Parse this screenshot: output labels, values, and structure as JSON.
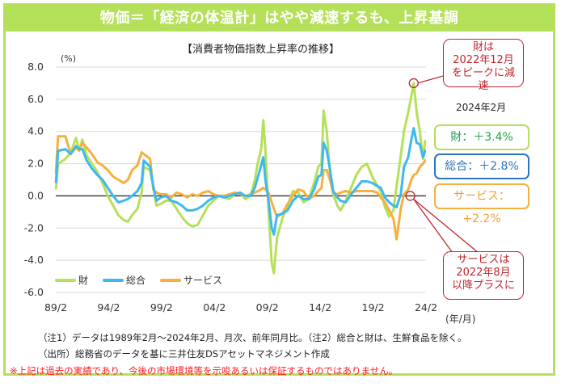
{
  "header": {
    "title": "物価＝「経済の体温計」はやや減速するも、上昇基調"
  },
  "chart_data": {
    "type": "line",
    "title": "【消費者物価指数上昇率の推移】",
    "ylabel": "(%)",
    "xlabel": "(年/月)",
    "ylim": [
      -6.0,
      8.0
    ],
    "yticks": [
      "8.0",
      "6.0",
      "4.0",
      "2.0",
      "0.0",
      "-2.0",
      "-4.0",
      "-6.0"
    ],
    "ytick_values": [
      8,
      6,
      4,
      2,
      0,
      -2,
      -4,
      -6
    ],
    "xlim": [
      1989.083,
      2024.083
    ],
    "xticks": [
      "89/2",
      "94/2",
      "99/2",
      "04/2",
      "09/2",
      "14/2",
      "19/2",
      "24/2"
    ],
    "xtick_values": [
      1989.083,
      1994.083,
      1999.083,
      2004.083,
      2009.083,
      2014.083,
      2019.083,
      2024.083
    ],
    "grid": true,
    "legend_position": "bottom-left",
    "series": [
      {
        "name": "財",
        "color": "#b5e05a",
        "x": [
          1989.1,
          1989.3,
          1990.0,
          1990.5,
          1991.0,
          1991.3,
          1991.6,
          1992.0,
          1992.5,
          1993.0,
          1993.5,
          1994.0,
          1994.5,
          1995.0,
          1995.5,
          1995.9,
          1996.3,
          1996.8,
          1997.2,
          1997.4,
          1998.0,
          1998.3,
          1998.6,
          1999.0,
          1999.5,
          2000.0,
          2000.5,
          2001.0,
          2001.5,
          2002.0,
          2002.5,
          2003.0,
          2003.5,
          2004.0,
          2004.5,
          2005.0,
          2005.5,
          2006.0,
          2006.5,
          2007.0,
          2007.5,
          2007.9,
          2008.2,
          2008.5,
          2008.7,
          2008.9,
          2009.2,
          2009.5,
          2009.7,
          2010.0,
          2010.5,
          2011.0,
          2011.5,
          2012.0,
          2012.5,
          2013.0,
          2013.5,
          2013.9,
          2014.2,
          2014.4,
          2014.7,
          2015.0,
          2015.3,
          2015.7,
          2016.0,
          2016.5,
          2017.0,
          2017.5,
          2018.0,
          2018.5,
          2019.0,
          2019.5,
          2019.8,
          2020.2,
          2020.6,
          2021.0,
          2021.3,
          2021.7,
          2022.0,
          2022.4,
          2022.7,
          2022.92,
          2023.2,
          2023.5,
          2023.8,
          2024.0,
          2024.083
        ],
        "values": [
          0.4,
          2.0,
          2.3,
          2.7,
          3.6,
          2.8,
          3.5,
          2.5,
          2.0,
          1.5,
          0.8,
          0.0,
          -0.6,
          -1.2,
          -1.5,
          -1.6,
          -1.2,
          -0.8,
          0.2,
          1.8,
          1.6,
          0.6,
          -0.6,
          -0.5,
          -0.3,
          -0.3,
          -0.8,
          -1.3,
          -1.7,
          -1.9,
          -1.8,
          -1.2,
          -0.6,
          -0.3,
          0.0,
          -0.1,
          -0.2,
          0.1,
          0.2,
          -0.2,
          0.0,
          1.0,
          2.1,
          2.9,
          4.7,
          2.9,
          -0.9,
          -4.2,
          -4.8,
          -2.6,
          -1.4,
          -0.6,
          0.3,
          0.2,
          -0.4,
          -0.2,
          0.8,
          1.8,
          2.0,
          5.3,
          4.0,
          1.5,
          0.1,
          -0.6,
          -0.9,
          -0.3,
          0.5,
          1.3,
          1.8,
          2.0,
          1.2,
          0.6,
          0.3,
          -0.7,
          -1.3,
          -0.9,
          0.6,
          2.5,
          4.0,
          5.2,
          6.2,
          7.0,
          5.2,
          4.0,
          2.3,
          3.4,
          3.4
        ]
      },
      {
        "name": "総合",
        "color": "#3db8f0",
        "x": [
          1989.1,
          1989.3,
          1990.0,
          1990.5,
          1991.0,
          1991.3,
          1991.6,
          1992.0,
          1992.5,
          1993.0,
          1993.5,
          1994.0,
          1994.5,
          1995.0,
          1995.5,
          1995.9,
          1996.3,
          1996.8,
          1997.2,
          1997.4,
          1998.0,
          1998.3,
          1998.6,
          1999.0,
          1999.5,
          2000.0,
          2000.5,
          2001.0,
          2001.5,
          2002.0,
          2002.5,
          2003.0,
          2003.5,
          2004.0,
          2004.5,
          2005.0,
          2005.5,
          2006.0,
          2006.5,
          2007.0,
          2007.5,
          2007.9,
          2008.2,
          2008.5,
          2008.7,
          2008.9,
          2009.2,
          2009.5,
          2009.7,
          2010.0,
          2010.5,
          2011.0,
          2011.5,
          2012.0,
          2012.5,
          2013.0,
          2013.5,
          2013.9,
          2014.2,
          2014.4,
          2014.7,
          2015.0,
          2015.3,
          2015.7,
          2016.0,
          2016.5,
          2017.0,
          2017.5,
          2018.0,
          2018.5,
          2019.0,
          2019.5,
          2019.8,
          2020.2,
          2020.6,
          2021.0,
          2021.3,
          2021.7,
          2022.0,
          2022.4,
          2022.7,
          2022.92,
          2023.2,
          2023.5,
          2023.8,
          2024.0,
          2024.083
        ],
        "values": [
          0.8,
          2.8,
          2.9,
          2.6,
          3.1,
          2.9,
          2.9,
          2.2,
          1.7,
          1.3,
          1.0,
          0.5,
          0.0,
          -0.4,
          -0.3,
          -0.2,
          0.0,
          0.3,
          0.8,
          2.2,
          1.8,
          0.6,
          -0.3,
          -0.1,
          0.0,
          -0.3,
          -0.4,
          -0.6,
          -0.9,
          -0.9,
          -0.8,
          -0.6,
          -0.3,
          -0.1,
          0.0,
          -0.1,
          0.0,
          0.1,
          0.2,
          0.0,
          0.0,
          0.5,
          1.2,
          1.9,
          2.4,
          1.0,
          -0.3,
          -2.0,
          -2.4,
          -1.2,
          -1.1,
          -0.9,
          -0.3,
          0.0,
          -0.2,
          -0.2,
          0.4,
          1.2,
          1.3,
          3.3,
          2.8,
          1.7,
          0.3,
          -0.1,
          -0.3,
          -0.4,
          0.1,
          0.5,
          0.9,
          0.9,
          0.8,
          0.6,
          0.5,
          -0.1,
          -0.4,
          -0.6,
          -0.7,
          0.1,
          1.8,
          2.4,
          3.5,
          4.2,
          3.3,
          3.2,
          2.4,
          2.8,
          2.8
        ]
      },
      {
        "name": "サービス",
        "color": "#f6b03d",
        "x": [
          1989.1,
          1989.3,
          1990.0,
          1990.5,
          1991.0,
          1991.3,
          1991.6,
          1992.0,
          1992.5,
          1993.0,
          1993.5,
          1994.0,
          1994.5,
          1995.0,
          1995.5,
          1995.9,
          1996.3,
          1996.8,
          1997.2,
          1997.4,
          1998.0,
          1998.3,
          1998.6,
          1999.0,
          1999.5,
          2000.0,
          2000.5,
          2001.0,
          2001.5,
          2002.0,
          2002.5,
          2003.0,
          2003.5,
          2004.0,
          2004.5,
          2005.0,
          2005.5,
          2006.0,
          2006.5,
          2007.0,
          2007.5,
          2007.9,
          2008.2,
          2008.5,
          2008.7,
          2008.9,
          2009.2,
          2009.5,
          2009.7,
          2010.0,
          2010.5,
          2011.0,
          2011.5,
          2012.0,
          2012.5,
          2013.0,
          2013.5,
          2013.9,
          2014.2,
          2014.4,
          2014.7,
          2015.0,
          2015.3,
          2015.7,
          2016.0,
          2016.5,
          2017.0,
          2017.5,
          2018.0,
          2018.5,
          2019.0,
          2019.5,
          2019.8,
          2020.2,
          2020.6,
          2021.0,
          2021.3,
          2021.7,
          2022.0,
          2022.4,
          2022.7,
          2022.92,
          2023.2,
          2023.5,
          2023.8,
          2024.0,
          2024.083
        ],
        "values": [
          1.4,
          3.7,
          3.7,
          2.6,
          3.0,
          2.8,
          3.3,
          3.0,
          2.6,
          2.1,
          1.9,
          1.6,
          1.2,
          1.0,
          0.8,
          1.0,
          1.6,
          1.9,
          2.7,
          2.6,
          2.3,
          0.4,
          0.2,
          0.1,
          0.1,
          -0.1,
          0.2,
          0.1,
          -0.1,
          0.1,
          0.0,
          0.2,
          0.3,
          0.1,
          0.0,
          0.0,
          0.1,
          0.2,
          0.1,
          0.0,
          0.1,
          0.2,
          0.3,
          0.4,
          0.5,
          0.4,
          0.2,
          -0.4,
          -0.8,
          -1.3,
          -1.1,
          -0.5,
          0.0,
          0.4,
          0.3,
          -0.2,
          0.0,
          0.3,
          0.5,
          1.6,
          1.6,
          1.0,
          0.2,
          0.1,
          0.2,
          0.3,
          0.2,
          0.3,
          0.3,
          0.3,
          0.3,
          0.2,
          -0.1,
          -0.4,
          -0.9,
          -1.4,
          -2.7,
          -0.8,
          0.1,
          0.4,
          1.0,
          1.3,
          1.4,
          1.8,
          2.0,
          2.2,
          2.2
        ]
      }
    ]
  },
  "annotations": {
    "goods_peak": {
      "line1": "財は",
      "line2": "2022年12月",
      "line3": "をピークに減速"
    },
    "service_plus": {
      "line1": "サービスは",
      "line2": "2022年8月",
      "line3": "以降プラスに"
    },
    "as_of": "2024年2月",
    "goods_value": "財：＋3.4%",
    "total_value": "総合：＋2.8%",
    "service_value": "サービス：+2.2%"
  },
  "legend": {
    "goods": "財",
    "total": "総合",
    "service": "サービス"
  },
  "notes": {
    "note1": "（注1）データは1989年2月～2024年2月、月次、前年同月比。（注2）総合と財は、生鮮食品を除く。",
    "note2": "（出所）総務省のデータを基に三井住友DSアセットマネジメント作成",
    "disclaimer": "※上記は過去の実績であり、今後の市場環境等を示唆あるいは保証するものではありません。"
  }
}
